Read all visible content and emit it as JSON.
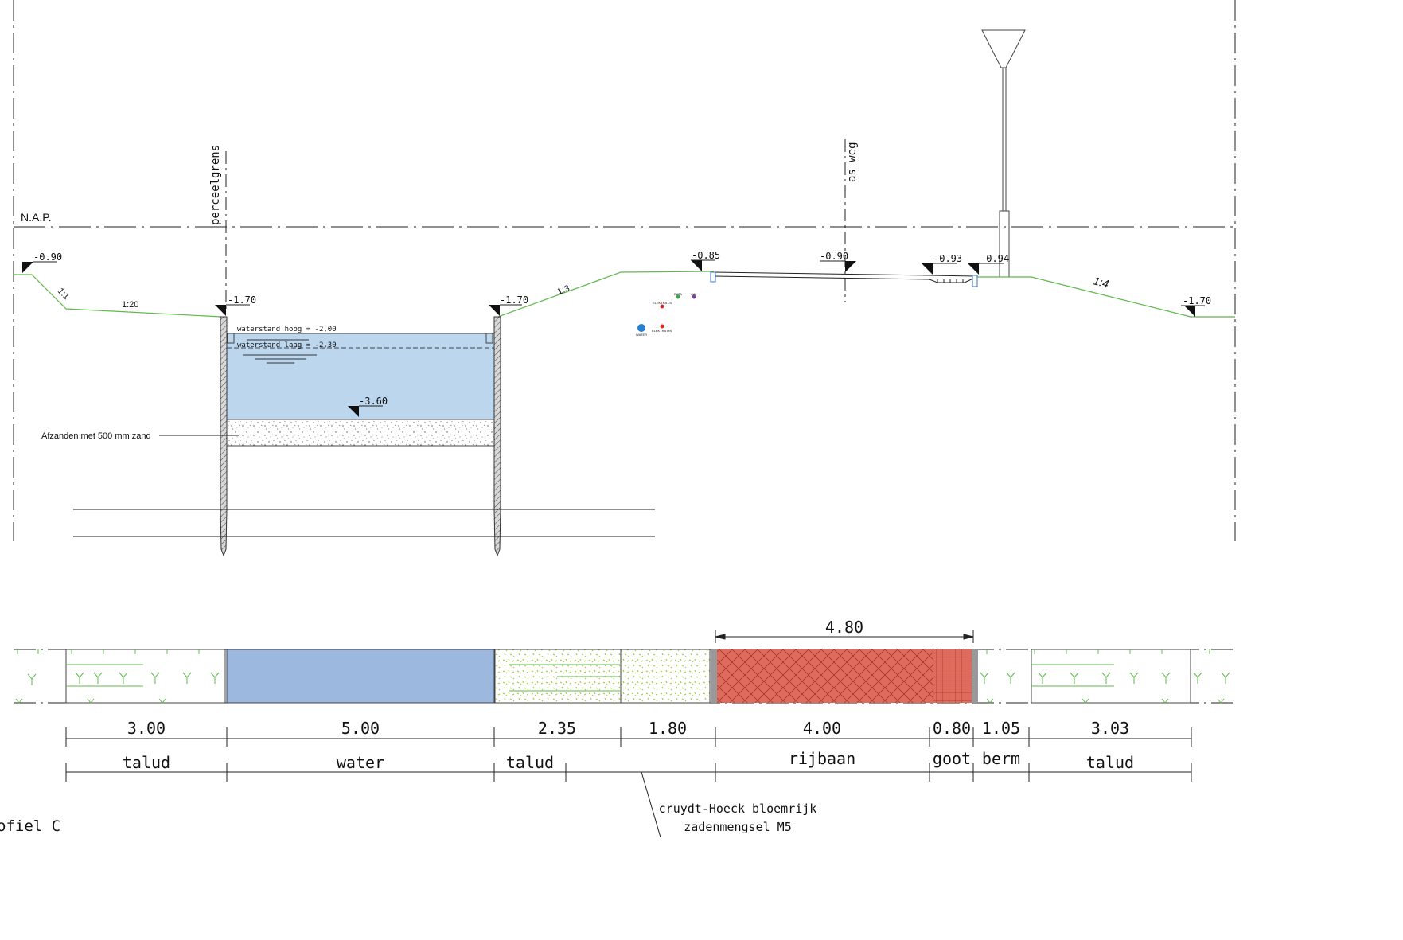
{
  "references": {
    "nap": "N.A.P.",
    "perceelgrens": "perceelgrens",
    "as_weg": "as weg"
  },
  "levels": {
    "left_top": "-0.90",
    "left_sheet": "-1.70",
    "right_sheet": "-1.70",
    "road_left": "-0.85",
    "road_axis": "-0.90",
    "gutter": "-0.93",
    "berm": "-0.94",
    "right_low": "-1.70",
    "canal_bottom": "-3.60"
  },
  "slopes": {
    "s_1_1": "1:1",
    "s_1_20": "1:20",
    "s_1_3": "1:3",
    "s_1_4": "1:4"
  },
  "water": {
    "high": "waterstand hoog = -2,00",
    "low": "waterstand laag = -2,30"
  },
  "annotation_sand": "Afzanden met 500 mm zand",
  "utilities": {
    "data": "DATA",
    "cai": "CAI",
    "elektra_ls": "ELEKTRA LS",
    "elektra_ms": "ELEKTRA MS",
    "water": "WATER"
  },
  "colors": {
    "ground_line": "#5fb84a",
    "water_fill": "#bcd6ee",
    "water_plan": "#9db8df",
    "brick": "#e06a5c",
    "seed_mix": "#a6cc3c"
  },
  "top_dimension": "4.80",
  "dimensions": [
    "3.00",
    "5.00",
    "2.35",
    "1.80",
    "4.00",
    "0.80",
    "1.05",
    "3.03"
  ],
  "zones": [
    "talud",
    "water",
    "talud",
    "rijbaan",
    "goot",
    "berm",
    "talud"
  ],
  "seed_note_1": "cruydt-Hoeck bloemrijk",
  "seed_note_2": "zadenmengsel M5",
  "profile_title": "ofiel C"
}
